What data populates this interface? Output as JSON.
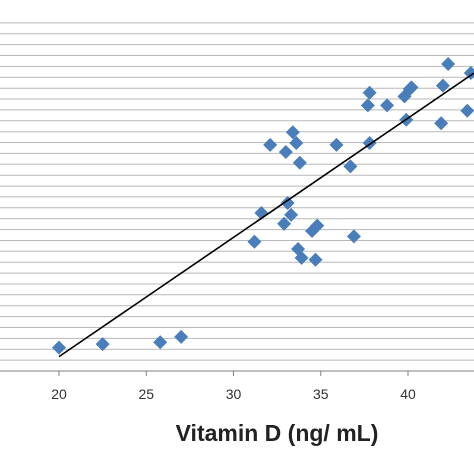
{
  "chart_data": {
    "type": "scatter",
    "title": "",
    "xlabel": "Vitamin D (ng/ mL)",
    "ylabel": "",
    "xlim": [
      10,
      43.5
    ],
    "x_ticks": [
      20,
      25,
      30,
      35,
      40
    ],
    "grid": "horizontal",
    "y_grid_count": 33,
    "legend": "none",
    "colors": {
      "points": "#4A7EBB",
      "trendline": "#000000",
      "grid": "#b8b8b8",
      "axis": "#808080"
    },
    "series": [
      {
        "marker": "diamond",
        "points": [
          {
            "x": 20.0,
            "y": 0.065
          },
          {
            "x": 22.5,
            "y": 0.075
          },
          {
            "x": 25.8,
            "y": 0.08
          },
          {
            "x": 27.0,
            "y": 0.095
          },
          {
            "x": 31.2,
            "y": 0.36
          },
          {
            "x": 31.6,
            "y": 0.44
          },
          {
            "x": 32.1,
            "y": 0.63
          },
          {
            "x": 32.9,
            "y": 0.41
          },
          {
            "x": 33.0,
            "y": 0.61
          },
          {
            "x": 33.1,
            "y": 0.468
          },
          {
            "x": 33.3,
            "y": 0.435
          },
          {
            "x": 33.4,
            "y": 0.665
          },
          {
            "x": 33.6,
            "y": 0.635
          },
          {
            "x": 33.7,
            "y": 0.34
          },
          {
            "x": 33.8,
            "y": 0.58
          },
          {
            "x": 33.9,
            "y": 0.315
          },
          {
            "x": 34.5,
            "y": 0.39
          },
          {
            "x": 34.7,
            "y": 0.31
          },
          {
            "x": 34.8,
            "y": 0.405
          },
          {
            "x": 35.9,
            "y": 0.63
          },
          {
            "x": 36.7,
            "y": 0.57
          },
          {
            "x": 36.9,
            "y": 0.375
          },
          {
            "x": 37.7,
            "y": 0.74
          },
          {
            "x": 37.8,
            "y": 0.775
          },
          {
            "x": 37.8,
            "y": 0.635
          },
          {
            "x": 38.8,
            "y": 0.74
          },
          {
            "x": 39.8,
            "y": 0.765
          },
          {
            "x": 39.9,
            "y": 0.7
          },
          {
            "x": 40.1,
            "y": 0.785
          },
          {
            "x": 40.2,
            "y": 0.79
          },
          {
            "x": 41.9,
            "y": 0.69
          },
          {
            "x": 42.0,
            "y": 0.795
          },
          {
            "x": 42.3,
            "y": 0.855
          },
          {
            "x": 43.4,
            "y": 0.725
          },
          {
            "x": 43.6,
            "y": 0.83
          }
        ]
      }
    ],
    "trendline": {
      "x": [
        20.0,
        43.8
      ],
      "y": [
        0.04,
        0.83
      ]
    }
  }
}
